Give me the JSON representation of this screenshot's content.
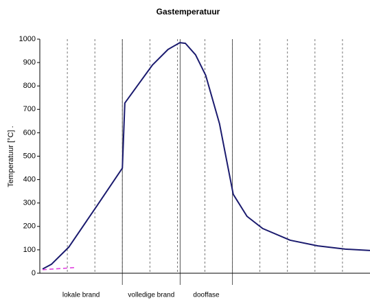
{
  "chart_data": {
    "type": "line",
    "title": "Gastemperatuur",
    "ylabel": "Temperatuur [°C] .",
    "xlim": [
      0,
      12
    ],
    "ylim": [
      0,
      1000
    ],
    "yticks": [
      0,
      100,
      200,
      300,
      400,
      500,
      600,
      700,
      800,
      900,
      1000
    ],
    "xgrid": [
      1,
      2,
      3,
      4,
      5,
      6,
      7,
      8,
      9,
      10,
      11
    ],
    "phases": [
      {
        "label": "lokale brand",
        "start": 0,
        "end": 3
      },
      {
        "label": "volledige brand",
        "start": 3,
        "end": 5.1
      },
      {
        "label": "dooffase",
        "start": 5.1,
        "end": 7
      }
    ],
    "series": [
      {
        "color": "#1a1a6e",
        "dashed": false,
        "x": [
          0.1,
          0.42,
          1.05,
          2.07,
          3.0,
          3.09,
          3.54,
          4.09,
          4.66,
          5.09,
          5.29,
          5.66,
          6.03,
          6.53,
          7.03,
          7.53,
          8.1,
          9.1,
          10.1,
          11.1,
          12
        ],
        "values": [
          18,
          38,
          111,
          287,
          449,
          727,
          800,
          889,
          956,
          985,
          982,
          933,
          845,
          639,
          337,
          243,
          191,
          141,
          117,
          103,
          97
        ]
      },
      {
        "color": "#e040e0",
        "dashed": true,
        "x": [
          0.1,
          1.25
        ],
        "values": [
          15,
          24
        ]
      }
    ]
  }
}
